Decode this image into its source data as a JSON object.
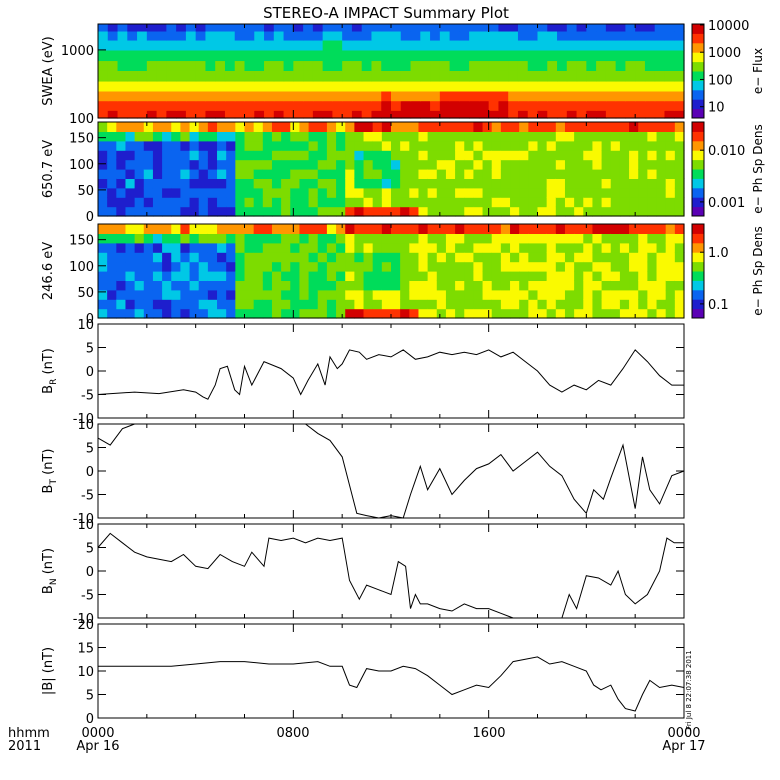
{
  "title": "STEREO-A IMPACT Summary Plot",
  "xaxis": {
    "row1_label": "hhmm",
    "row2_label": "2011",
    "ticks": [
      "0000",
      "0800",
      "1600",
      "0000"
    ],
    "dates": [
      "Apr 16",
      "Apr 17"
    ]
  },
  "stamp": "Fri Jul  8 22:07:38 2011",
  "colors": {
    "background": "#ffffff",
    "line": "#000000",
    "colormap": [
      "#5a00b4",
      "#1e1ecd",
      "#0a64f0",
      "#00c8e6",
      "#00dc5a",
      "#7ddc00",
      "#fafa00",
      "#ff9600",
      "#ff3200",
      "#d20000"
    ]
  },
  "chart_data": [
    {
      "type": "heatmap",
      "ylabel": "SWEA (eV)",
      "ylog": true,
      "yticks": [
        "100",
        "1000"
      ],
      "cbar_label": "e− Flux",
      "cbar_log": true,
      "cbar_ticks": [
        "10",
        "100",
        "1000",
        "10000"
      ],
      "bands_y": [
        100,
        130,
        180,
        250,
        350,
        500,
        700,
        1000,
        1400,
        1900
      ],
      "band_levels": [
        8.5,
        7.8,
        6.8,
        6.0,
        5.2,
        4.6,
        4.0,
        3.2,
        2.4,
        1.6
      ]
    },
    {
      "type": "heatmap",
      "ylabel": "650.7 eV",
      "ylim": [
        0,
        180
      ],
      "yticks": [
        "0",
        "50",
        "100",
        "150"
      ],
      "cbar_label": "e− Ph Sp Dens",
      "cbar_log": true,
      "cbar_ticks": [
        "0.001",
        "0.010"
      ]
    },
    {
      "type": "heatmap",
      "ylabel": "246.6 eV",
      "ylim": [
        0,
        180
      ],
      "yticks": [
        "0",
        "50",
        "100",
        "150"
      ],
      "cbar_label": "e− Ph Sp Dens",
      "cbar_log": true,
      "cbar_ticks": [
        "0.1",
        "1.0"
      ]
    },
    {
      "type": "line",
      "ylabel": "B",
      "ysub": "R",
      "yunit": " (nT)",
      "ylim": [
        -10,
        10
      ],
      "yticks": [
        "-10",
        "-5",
        "0",
        "5",
        "10"
      ],
      "x_hours": [
        0,
        1.5,
        2.5,
        3.5,
        4.0,
        4.3,
        4.5,
        4.8,
        5.0,
        5.3,
        5.6,
        5.8,
        6.0,
        6.3,
        6.8,
        7.5,
        8.0,
        8.3,
        8.6,
        9.0,
        9.3,
        9.5,
        9.8,
        10.0,
        10.3,
        10.7,
        11.0,
        11.5,
        12.0,
        12.5,
        13.0,
        13.5,
        14.0,
        14.5,
        15.0,
        15.5,
        16.0,
        16.5,
        17.0,
        17.5,
        18.0,
        18.5,
        19.0,
        19.5,
        20.0,
        20.5,
        21.0,
        21.5,
        22.0,
        22.5,
        23.0,
        23.5,
        24.0
      ],
      "y": [
        -5,
        -4.5,
        -4.8,
        -4,
        -4.5,
        -5.5,
        -6,
        -3,
        0.5,
        1,
        -4,
        -5,
        1,
        -3,
        2,
        0.5,
        -1.5,
        -5,
        -2,
        1.5,
        -3,
        3,
        0.5,
        1.5,
        4.5,
        4,
        2.5,
        3.5,
        3,
        4.5,
        2.5,
        3,
        4,
        3.5,
        4,
        3.5,
        4.5,
        3,
        4,
        2,
        0,
        -3,
        -4.5,
        -3,
        -4,
        -2,
        -3,
        0.5,
        4.5,
        2,
        -1,
        -3,
        -3
      ]
    },
    {
      "type": "line",
      "ylabel": "B",
      "ysub": "T",
      "yunit": " (nT)",
      "ylim": [
        -10,
        10
      ],
      "yticks": [
        "-10",
        "-5",
        "0",
        "5",
        "10"
      ],
      "x_hours": [
        0,
        0.5,
        1,
        1.5,
        2.5,
        3.5,
        4.5,
        5.5,
        6.5,
        7.5,
        8.0,
        8.5,
        9.0,
        9.5,
        10.0,
        10.3,
        10.6,
        11.0,
        11.5,
        12.0,
        12.5,
        12.8,
        13.0,
        13.2,
        13.5,
        14.0,
        14.5,
        15.0,
        15.5,
        16.0,
        16.5,
        17.0,
        17.5,
        18.0,
        18.5,
        19.0,
        19.5,
        20.0,
        20.3,
        20.7,
        21.0,
        21.5,
        22.0,
        22.3,
        22.6,
        23.0,
        23.5,
        24.0
      ],
      "y": [
        7,
        5.5,
        9,
        10,
        10,
        10,
        10,
        10,
        10,
        10,
        10,
        10,
        8,
        6.5,
        3,
        -3,
        -9,
        -9.5,
        -10,
        -9.5,
        -10,
        -5,
        -2,
        1,
        -4,
        0.5,
        -5,
        -2,
        0.5,
        1.5,
        3.5,
        0,
        2,
        4,
        1,
        -1,
        -6,
        -9,
        -4,
        -6,
        -1.5,
        5.5,
        -8,
        3,
        -4,
        -7,
        -1,
        0
      ]
    },
    {
      "type": "line",
      "ylabel": "B",
      "ysub": "N",
      "yunit": " (nT)",
      "ylim": [
        -10,
        10
      ],
      "yticks": [
        "-10",
        "-5",
        "0",
        "5",
        "10"
      ],
      "x_hours": [
        0,
        0.5,
        1.0,
        1.5,
        2.0,
        2.5,
        3.0,
        3.5,
        4.0,
        4.5,
        5.0,
        5.5,
        6.0,
        6.3,
        6.8,
        7.0,
        7.5,
        8.0,
        8.5,
        9.0,
        9.5,
        10.0,
        10.3,
        10.7,
        11.0,
        11.5,
        12.0,
        12.3,
        12.6,
        12.8,
        13.0,
        13.2,
        13.5,
        14.0,
        14.5,
        15.0,
        15.5,
        16.0,
        16.5,
        17.0,
        17.5,
        18.0,
        18.5,
        19.0,
        19.3,
        19.6,
        20.0,
        20.5,
        21.0,
        21.3,
        21.6,
        22.0,
        22.5,
        23.0,
        23.3,
        23.6,
        24.0
      ],
      "y": [
        5,
        8,
        6,
        4,
        3,
        2.5,
        2,
        3.5,
        1,
        0.5,
        3.5,
        2,
        1,
        4,
        1,
        7,
        6.5,
        7,
        6,
        7,
        6.5,
        7,
        -2,
        -6,
        -3,
        -4,
        -5,
        2,
        1,
        -8,
        -5,
        -7,
        -7,
        -8,
        -8.5,
        -7,
        -8,
        -8,
        -9,
        -10,
        -10,
        -10,
        -10,
        -10,
        -5,
        -8,
        -1,
        -1.5,
        -3,
        0,
        -5,
        -7,
        -5,
        0,
        7,
        6,
        6
      ]
    },
    {
      "type": "line",
      "ylabel": "|B| (nT)",
      "ylim": [
        0,
        20
      ],
      "yticks": [
        "0",
        "5",
        "10",
        "15",
        "20"
      ],
      "x_hours": [
        0,
        1,
        2,
        3,
        4,
        5,
        6,
        7,
        8,
        9,
        9.5,
        10.0,
        10.3,
        10.6,
        11.0,
        11.5,
        12.0,
        12.5,
        13.0,
        13.5,
        14.0,
        14.5,
        15.0,
        15.5,
        16.0,
        16.5,
        17.0,
        17.5,
        18.0,
        18.5,
        19.0,
        19.5,
        20.0,
        20.3,
        20.6,
        21.0,
        21.3,
        21.6,
        22.0,
        22.3,
        22.6,
        23.0,
        23.5,
        24.0
      ],
      "y": [
        11,
        11,
        11,
        11,
        11.5,
        12,
        12,
        11.5,
        11.5,
        12,
        11,
        11,
        7,
        6.5,
        10.5,
        10,
        10,
        11,
        10.5,
        9,
        7,
        5,
        6,
        7,
        6.5,
        9,
        12,
        12.5,
        13,
        11.5,
        12,
        11,
        10,
        7,
        6,
        7,
        4,
        2,
        1.5,
        5,
        8,
        6.5,
        7,
        6.5
      ]
    }
  ]
}
